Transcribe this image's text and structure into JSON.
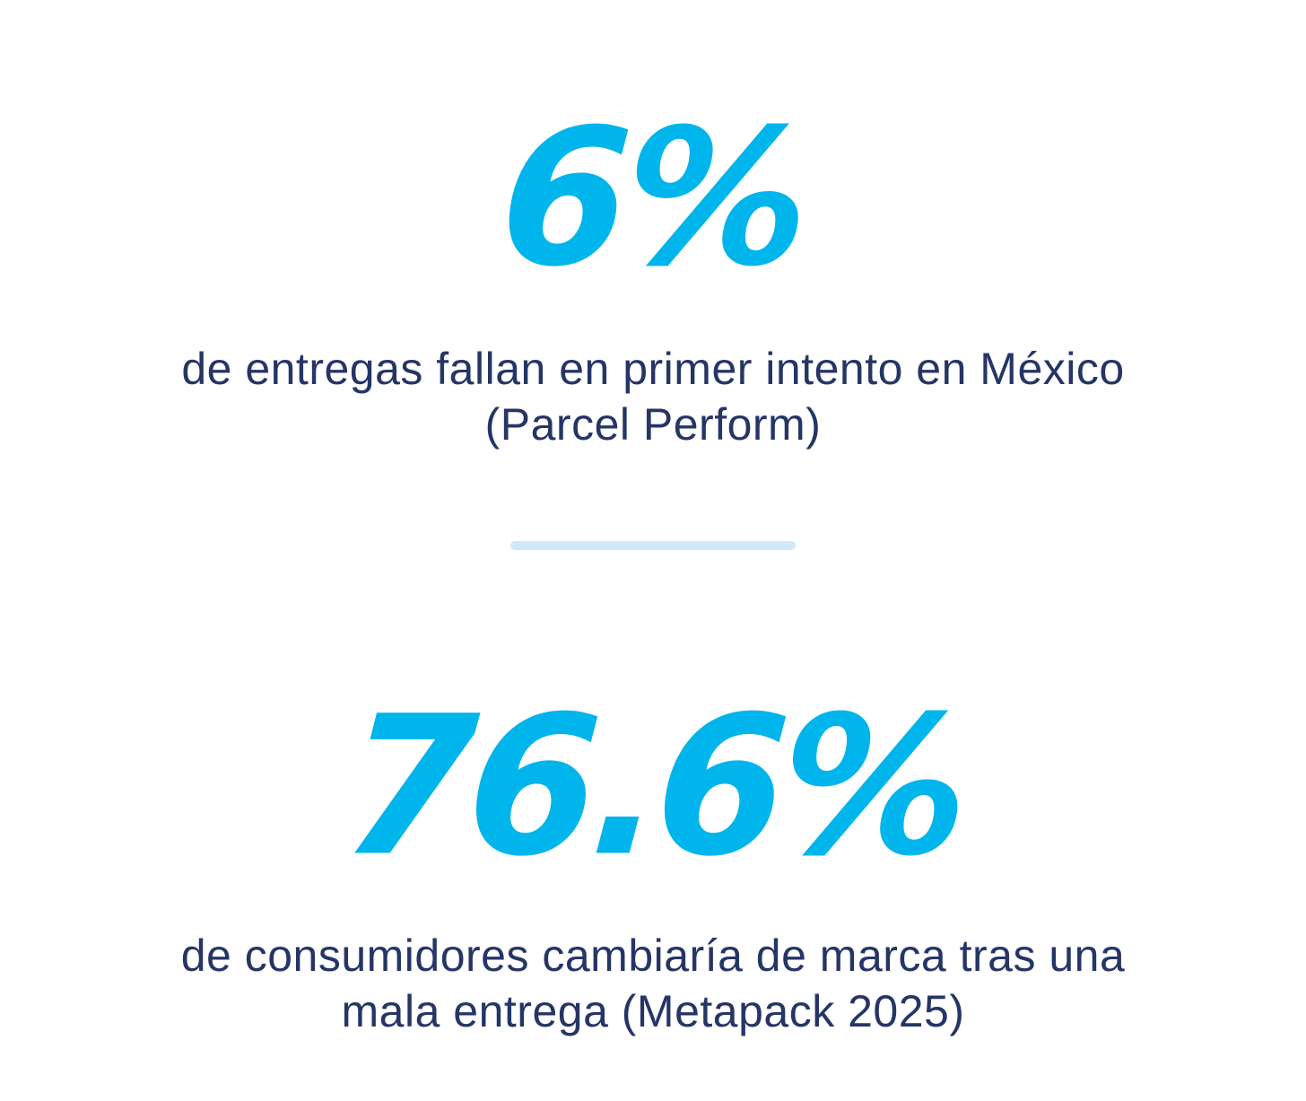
{
  "stats": [
    {
      "value": "6%",
      "description_line1": "de entregas fallan en primer intento en México",
      "description_line2": "(Parcel Perform)"
    },
    {
      "value": "76.6%",
      "description_line1": "de consumidores cambiaría de marca tras una",
      "description_line2": "mala entrega (Metapack 2025)"
    }
  ],
  "colors": {
    "accent": "#00b5ec",
    "text": "#253566",
    "divider": "#d3e7fc",
    "background": "#ffffff"
  }
}
